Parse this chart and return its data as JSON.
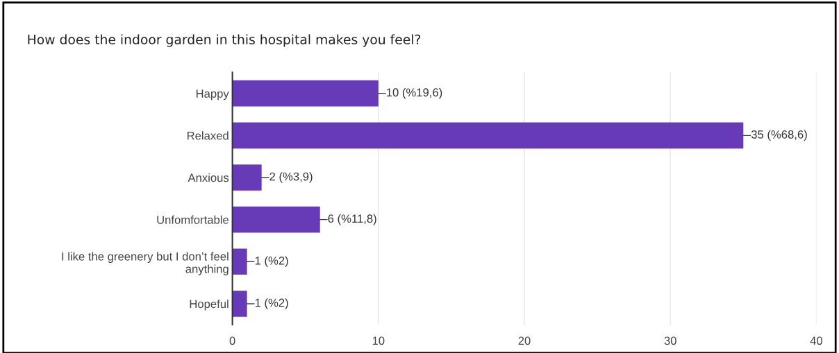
{
  "chart_data": {
    "type": "bar",
    "orientation": "horizontal",
    "title": "How does the indoor garden in this hospital makes you feel?",
    "categories": [
      "Happy",
      "Relaxed",
      "Anxious",
      "Unfomfortable",
      "I like the greenery but I don’t feel\nanything",
      "Hopeful"
    ],
    "values": [
      10,
      35,
      2,
      6,
      1,
      1
    ],
    "value_labels": [
      "10 (%19,6)",
      "35 (%68,6)",
      "2 (%3,9)",
      "6 (%11,8)",
      "1 (%2)",
      "1 (%2)"
    ],
    "color": "#673ab7",
    "xlim": [
      0,
      40
    ],
    "xticks": [
      0,
      10,
      20,
      30,
      40
    ],
    "grid": "x",
    "legend": false
  }
}
